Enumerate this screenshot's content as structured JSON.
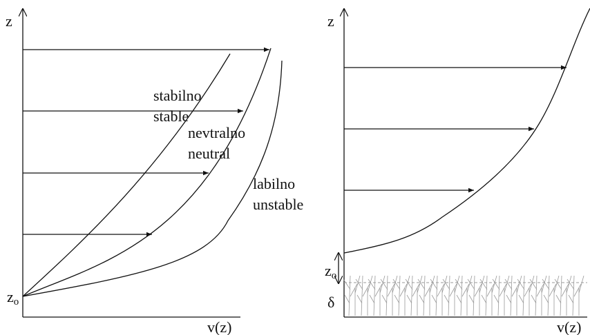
{
  "left": {
    "y_axis": "z",
    "x_axis": "v(z)",
    "origin": {
      "base": "z",
      "sub": "o"
    },
    "curves": [
      {
        "label": "stabilno",
        "label_en": "stable"
      },
      {
        "label": "nevtralno",
        "label_en": "neutral"
      },
      {
        "label": "labilno",
        "label_en": "unstable"
      }
    ]
  },
  "right": {
    "y_axis": "z",
    "x_axis": "v(z)",
    "roughness": {
      "base": "z",
      "sub": "o"
    },
    "displacement": "δ"
  }
}
